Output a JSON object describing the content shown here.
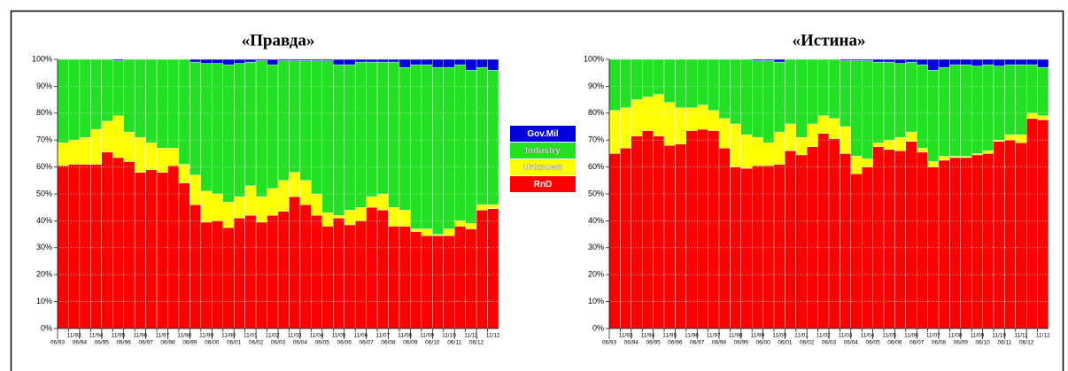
{
  "chart_data": [
    {
      "type": "stacked_bar",
      "title": "«Правда»",
      "categories": [
        "06/93",
        "11/93",
        "06/94",
        "11/94",
        "06/95",
        "11/95",
        "06/96",
        "11/96",
        "06/97",
        "11/97",
        "06/98",
        "11/98",
        "06/99",
        "11/99",
        "06/00",
        "11/00",
        "06/01",
        "11/01",
        "06/02",
        "11/02",
        "06/03",
        "11/03",
        "06/04",
        "11/04",
        "06/05",
        "11/05",
        "06/06",
        "11/06",
        "06/07",
        "11/07",
        "06/08",
        "11/08",
        "06/09",
        "11/09",
        "06/10",
        "11/10",
        "06/11",
        "11/11",
        "06/12",
        "11/12"
      ],
      "series": [
        {
          "name": "RnD",
          "color": "#ff0000",
          "values": [
            60.5,
            61,
            61,
            61,
            65.5,
            63.5,
            62,
            58,
            59,
            58,
            60.5,
            54,
            46,
            39.5,
            40,
            37.5,
            41,
            42,
            39.5,
            42,
            43.5,
            49,
            46,
            42,
            38,
            41,
            38.5,
            40,
            45,
            44,
            38,
            38,
            36,
            34.5,
            34.5,
            34.5,
            38,
            37,
            44,
            44.5
          ]
        },
        {
          "name": "Unknown",
          "color": "#ffff00",
          "values": [
            8.5,
            9,
            10,
            13,
            11.5,
            15.5,
            11,
            13,
            10,
            9,
            6.5,
            7,
            11,
            11.5,
            10,
            9.5,
            8,
            11,
            9.5,
            10,
            11.5,
            9,
            9,
            8,
            5,
            1,
            5.5,
            5,
            4,
            6,
            7,
            6,
            1,
            2.5,
            0.5,
            2.5,
            2,
            2,
            2,
            1.5
          ]
        },
        {
          "name": "Industry",
          "color": "#22e022",
          "values": [
            31,
            30,
            29,
            26,
            23,
            20.5,
            27,
            29,
            31,
            33,
            33,
            39,
            42,
            47.5,
            48.5,
            51,
            49.5,
            46,
            50.5,
            46,
            44.5,
            41.5,
            44.5,
            49.5,
            56.5,
            56,
            54,
            54,
            50,
            49,
            54,
            53,
            61,
            61,
            62,
            60,
            58,
            57,
            51,
            50
          ]
        },
        {
          "name": "Gov.Mil",
          "color": "#0000dd",
          "values": [
            0,
            0,
            0,
            0,
            0,
            0.5,
            0,
            0,
            0,
            0,
            0,
            0,
            1,
            1.5,
            1.5,
            2,
            1.5,
            1,
            0.5,
            2,
            0.5,
            0.5,
            0.5,
            0.5,
            0.5,
            2,
            2,
            1,
            1,
            1,
            1,
            3,
            2,
            2,
            3,
            3,
            2,
            4,
            3,
            4
          ]
        }
      ],
      "ylim": [
        0,
        100
      ],
      "yticks": [
        {
          "value": 0,
          "label": "0%"
        },
        {
          "value": 10,
          "label": "10%"
        },
        {
          "value": 20,
          "label": "20%"
        },
        {
          "value": 30,
          "label": "30%"
        },
        {
          "value": 40,
          "label": "40%"
        },
        {
          "value": 50,
          "label": "50%"
        },
        {
          "value": 60,
          "label": "60%"
        },
        {
          "value": 70,
          "label": "70%"
        },
        {
          "value": 80,
          "label": "80%"
        },
        {
          "value": 90,
          "label": "90%"
        },
        {
          "value": 100,
          "label": "100%"
        }
      ],
      "grid": true
    },
    {
      "type": "stacked_bar",
      "title": "«Истина»",
      "categories": [
        "06/93",
        "11/93",
        "06/94",
        "11/94",
        "06/95",
        "11/95",
        "06/96",
        "11/96",
        "06/97",
        "11/97",
        "06/98",
        "11/98",
        "06/99",
        "11/99",
        "06/00",
        "11/00",
        "06/01",
        "11/01",
        "06/02",
        "11/02",
        "06/03",
        "11/03",
        "06/04",
        "11/04",
        "06/05",
        "11/05",
        "06/06",
        "11/06",
        "06/07",
        "11/07",
        "06/08",
        "11/08",
        "06/09",
        "11/09",
        "06/10",
        "11/10",
        "06/11",
        "11/11",
        "06/12",
        "11/12"
      ],
      "series": [
        {
          "color": "#ff0000",
          "values": [
            65,
            67,
            71.5,
            73.5,
            71.5,
            68,
            68.5,
            73.5,
            74,
            73.5,
            67,
            60,
            59.5,
            60.5,
            60.5,
            61,
            66,
            64.5,
            67.5,
            72.5,
            70.5,
            65,
            57.5,
            60,
            67.5,
            66.5,
            66,
            69.5,
            65.5,
            60,
            62.5,
            63.5,
            63.5,
            64.5,
            65,
            69.5,
            70,
            69,
            78,
            77.5
          ]
        },
        {
          "color": "#ffff00",
          "values": [
            16,
            15,
            13.5,
            12.5,
            15.5,
            16,
            13.5,
            8.5,
            9,
            7.5,
            11,
            16,
            12.5,
            10.5,
            8.5,
            12,
            10,
            6.5,
            8.5,
            6.5,
            7.5,
            10,
            6.5,
            3,
            1.5,
            3.5,
            5,
            3.5,
            1.5,
            2,
            1.5,
            0.5,
            0.5,
            0.5,
            1,
            0.5,
            2,
            3,
            2,
            1.5
          ]
        },
        {
          "color": "#22e022",
          "values": [
            19,
            18,
            15,
            14,
            13,
            16,
            18,
            18,
            17,
            19,
            22,
            24,
            28,
            28.5,
            30.5,
            26,
            24,
            29,
            24,
            21,
            22,
            24.5,
            35.5,
            36.5,
            30,
            29,
            27.5,
            26,
            31,
            34,
            33,
            34,
            34,
            32.5,
            32,
            27.5,
            26,
            26,
            18,
            18
          ]
        },
        {
          "color": "#0000dd",
          "values": [
            0,
            0,
            0,
            0,
            0,
            0,
            0,
            0,
            0,
            0,
            0,
            0,
            0,
            0.5,
            0.5,
            1,
            0,
            0,
            0,
            0,
            0,
            0.5,
            0.5,
            0.5,
            1,
            1,
            1.5,
            1,
            2,
            4,
            3,
            2,
            2,
            2.5,
            2,
            2.5,
            2,
            2,
            2,
            3
          ]
        }
      ],
      "ylim": [
        0,
        100
      ],
      "yticks": [
        {
          "value": 0,
          "label": "0%"
        },
        {
          "value": 10,
          "label": "10%"
        },
        {
          "value": 20,
          "label": "20%"
        },
        {
          "value": 30,
          "label": "30%"
        },
        {
          "value": 40,
          "label": "40%"
        },
        {
          "value": 50,
          "label": "50%"
        },
        {
          "value": 60,
          "label": "60%"
        },
        {
          "value": 70,
          "label": "70%"
        },
        {
          "value": 80,
          "label": "80%"
        },
        {
          "value": 90,
          "label": "90%"
        },
        {
          "value": 100,
          "label": "100%"
        }
      ],
      "grid": true
    }
  ]
}
